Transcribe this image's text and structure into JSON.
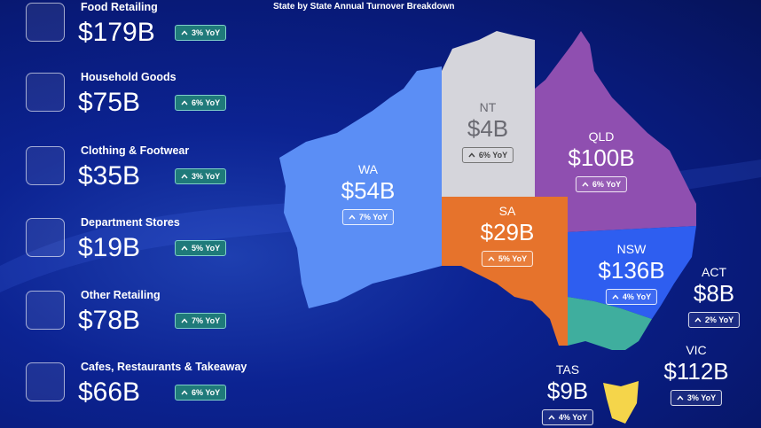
{
  "title": "State by State Annual Turnover Breakdown",
  "categories": [
    {
      "name": "Food Retailing",
      "value": "$179B",
      "change": "3% YoY"
    },
    {
      "name": "Household Goods",
      "value": "$75B",
      "change": "6% YoY"
    },
    {
      "name": "Clothing & Footwear",
      "value": "$35B",
      "change": "3% YoY"
    },
    {
      "name": "Department Stores",
      "value": "$19B",
      "change": "5% YoY"
    },
    {
      "name": "Other Retailing",
      "value": "$78B",
      "change": "7% YoY"
    },
    {
      "name": "Cafes, Restaurants & Takeaway",
      "value": "$66B",
      "change": "6% YoY"
    }
  ],
  "states": [
    {
      "name": "WA",
      "value": "$54B",
      "change": "7% YoY"
    },
    {
      "name": "NT",
      "value": "$4B",
      "change": "6% YoY"
    },
    {
      "name": "QLD",
      "value": "$100B",
      "change": "6% YoY"
    },
    {
      "name": "SA",
      "value": "$29B",
      "change": "5% YoY"
    },
    {
      "name": "NSW",
      "value": "$136B",
      "change": "4% YoY"
    },
    {
      "name": "ACT",
      "value": "$8B",
      "change": "2% YoY"
    },
    {
      "name": "VIC",
      "value": "$112B",
      "change": "3% YoY"
    },
    {
      "name": "TAS",
      "value": "$9B",
      "change": "4% YoY"
    }
  ]
}
